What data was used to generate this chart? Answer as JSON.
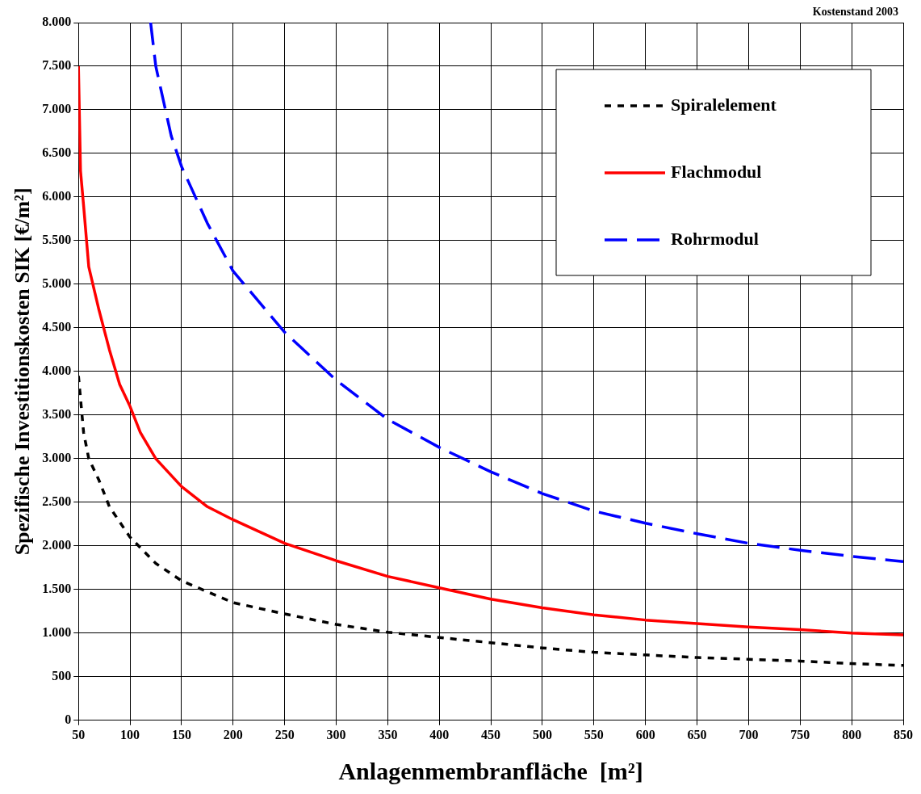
{
  "chart_data": {
    "type": "line",
    "xlabel": "Anlagenmembranfläche  [m²]",
    "ylabel": "Spezifische Investitionskosten SIK [€/m²]",
    "annotations": [
      "Kostenstand 2003"
    ],
    "xlim": [
      50,
      850
    ],
    "xticks": [
      50,
      100,
      150,
      200,
      250,
      300,
      350,
      400,
      450,
      500,
      550,
      600,
      650,
      700,
      750,
      800,
      850
    ],
    "ylim": [
      0,
      8000
    ],
    "yticks": [
      0,
      500,
      {
        "value": 1000,
        "label": "1.000"
      },
      {
        "value": 1500,
        "label": "1.500"
      },
      {
        "value": 2000,
        "label": "2.000"
      },
      {
        "value": 2500,
        "label": "2.500"
      },
      {
        "value": 3000,
        "label": "3.000"
      },
      {
        "value": 3500,
        "label": "3.500"
      },
      {
        "value": 4000,
        "label": "4.000"
      },
      {
        "value": 4500,
        "label": "4.500"
      },
      {
        "value": 5000,
        "label": "5.000"
      },
      {
        "value": 5500,
        "label": "5.500"
      },
      {
        "value": 6000,
        "label": "6.000"
      },
      {
        "value": 6500,
        "label": "6.500"
      },
      {
        "value": 7000,
        "label": "7.000"
      },
      {
        "value": 7500,
        "label": "7.500"
      },
      {
        "value": 8000,
        "label": "8.000"
      }
    ],
    "grid": true,
    "legend": "top right",
    "marker": "none",
    "series": [
      {
        "name": "Spiralelement",
        "color": "#000000",
        "line_style": "dotted",
        "x": [
          50,
          55,
          60,
          70,
          80,
          100,
          125,
          150,
          200,
          250,
          300,
          350,
          400,
          450,
          500,
          550,
          600,
          650,
          700,
          750,
          800,
          850
        ],
        "values": [
          3950,
          3300,
          3000,
          2750,
          2450,
          2100,
          1800,
          1600,
          1350,
          1220,
          1100,
          1010,
          950,
          890,
          830,
          780,
          750,
          720,
          700,
          680,
          650,
          630
        ]
      },
      {
        "name": "Flachmodul",
        "color": "#ff0000",
        "line_style": "solid",
        "x": [
          50,
          52,
          55,
          60,
          70,
          80,
          90,
          100,
          110,
          125,
          150,
          175,
          200,
          250,
          300,
          350,
          400,
          450,
          500,
          550,
          600,
          650,
          700,
          750,
          800,
          850
        ],
        "values": [
          7500,
          6300,
          5900,
          5200,
          4700,
          4250,
          3850,
          3600,
          3300,
          3000,
          2680,
          2450,
          2300,
          2030,
          1830,
          1650,
          1520,
          1390,
          1290,
          1210,
          1150,
          1110,
          1070,
          1040,
          1000,
          980
        ]
      },
      {
        "name": "Rohrmodul",
        "color": "#0000ff",
        "line_style": "dashed",
        "x": [
          120,
          125,
          140,
          150,
          175,
          200,
          250,
          300,
          350,
          400,
          450,
          500,
          550,
          600,
          650,
          700,
          750,
          800,
          850
        ],
        "values": [
          8000,
          7500,
          6700,
          6350,
          5700,
          5150,
          4450,
          3900,
          3450,
          3130,
          2850,
          2600,
          2400,
          2260,
          2140,
          2030,
          1950,
          1880,
          1820
        ]
      }
    ]
  }
}
